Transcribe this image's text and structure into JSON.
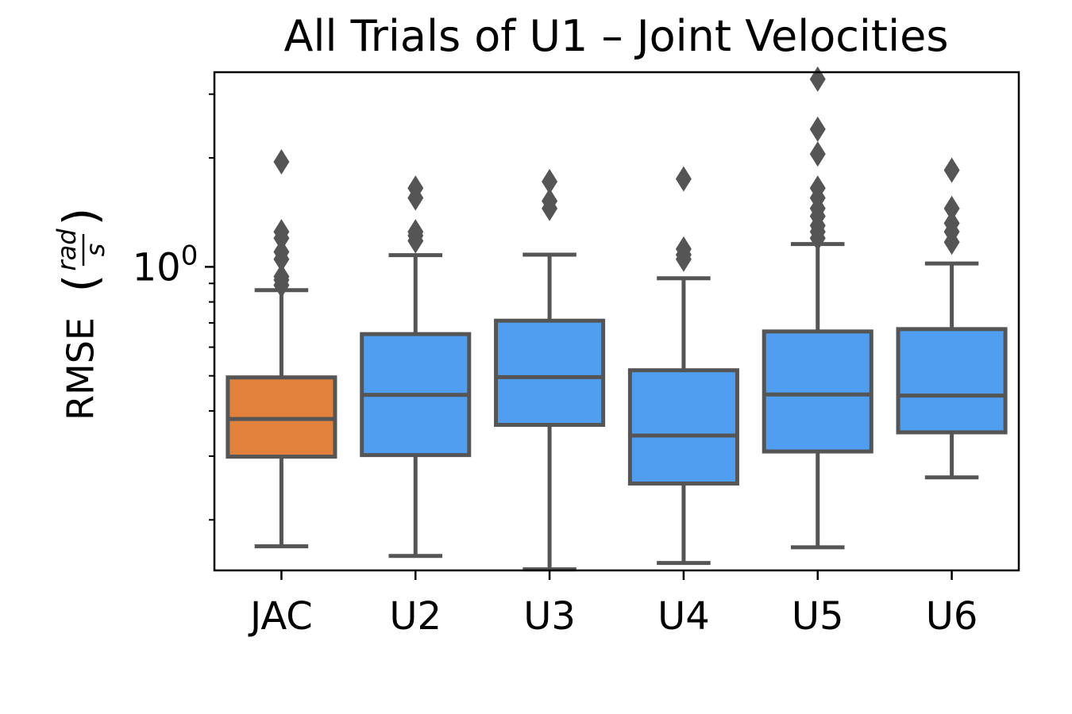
{
  "chart_data": {
    "type": "box",
    "title": "All Trials of U1 – Joint Velocities",
    "ylabel": {
      "prefix": "RMSE",
      "fraction_numerator": "rad",
      "fraction_denominator": "s"
    },
    "xlabel": "",
    "y_scale": "log",
    "ylim": [
      0.145,
      3.45
    ],
    "y_major_ticks": [
      {
        "value": 1.0,
        "base": "10",
        "exponent": "0"
      }
    ],
    "y_minor_ticks": [
      0.2,
      0.3,
      0.4,
      0.5,
      0.6,
      0.7,
      0.8,
      0.9,
      2,
      3
    ],
    "categories": [
      "JAC",
      "U2",
      "U3",
      "U4",
      "U5",
      "U6"
    ],
    "colors": {
      "highlight": "#e1813c",
      "default": "#4f9ef0",
      "outline": "#555555"
    },
    "boxes": [
      {
        "category": "JAC",
        "whisker_low": 0.169,
        "q1": 0.299,
        "median": 0.38,
        "q3": 0.495,
        "whisker_high": 0.862,
        "highlight": true,
        "outliers": [
          0.89,
          0.92,
          0.94,
          1.05,
          1.1,
          1.2,
          1.25,
          1.95
        ]
      },
      {
        "category": "U2",
        "whisker_low": 0.159,
        "q1": 0.302,
        "median": 0.443,
        "q3": 0.652,
        "whisker_high": 1.077,
        "highlight": false,
        "outliers": [
          1.18,
          1.22,
          1.25,
          1.55,
          1.65
        ]
      },
      {
        "category": "U3",
        "whisker_low": 0.146,
        "q1": 0.366,
        "median": 0.496,
        "q3": 0.71,
        "whisker_high": 1.081,
        "highlight": false,
        "outliers": [
          1.45,
          1.52,
          1.72
        ]
      },
      {
        "category": "U4",
        "whisker_low": 0.152,
        "q1": 0.252,
        "median": 0.342,
        "q3": 0.518,
        "whisker_high": 0.93,
        "highlight": false,
        "outliers": [
          1.05,
          1.08,
          1.12,
          1.75
        ]
      },
      {
        "category": "U5",
        "whisker_low": 0.168,
        "q1": 0.309,
        "median": 0.444,
        "q3": 0.663,
        "whisker_high": 1.156,
        "highlight": false,
        "outliers": [
          1.2,
          1.25,
          1.3,
          1.38,
          1.45,
          1.55,
          1.65,
          2.05,
          2.4,
          3.3
        ]
      },
      {
        "category": "U6",
        "whisker_low": 0.262,
        "q1": 0.349,
        "median": 0.441,
        "q3": 0.673,
        "whisker_high": 1.022,
        "highlight": false,
        "outliers": [
          1.17,
          1.25,
          1.32,
          1.45,
          1.85
        ]
      }
    ]
  }
}
